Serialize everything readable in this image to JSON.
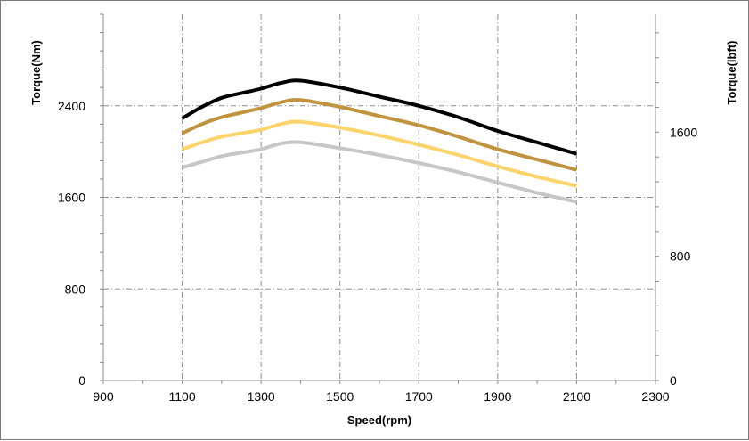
{
  "chart_data": {
    "type": "line",
    "title": "",
    "xlabel": "Speed(rpm)",
    "ylabel": "Torque(Nm)",
    "y2label": "Torque(lbft)",
    "xlim": [
      900,
      2300
    ],
    "ylim": [
      0,
      3200
    ],
    "y2lim": [
      0,
      2360
    ],
    "x_ticks": [
      "900",
      "1100",
      "1300",
      "1500",
      "1700",
      "1900",
      "2100",
      "2300"
    ],
    "y_ticks": [
      "0",
      "800",
      "1600",
      "2400"
    ],
    "y2_ticks": [
      "0",
      "800",
      "1600"
    ],
    "grid": true,
    "legend": "none",
    "series": [
      {
        "color": "#000000",
        "x": [
          1100,
          1150,
          1200,
          1250,
          1300,
          1350,
          1400,
          1500,
          1600,
          1700,
          1800,
          1900,
          2000,
          2100
        ],
        "values": [
          2290,
          2390,
          2470,
          2510,
          2550,
          2600,
          2620,
          2560,
          2480,
          2400,
          2300,
          2180,
          2080,
          1980
        ]
      },
      {
        "color": "#c1933f",
        "x": [
          1100,
          1150,
          1200,
          1250,
          1300,
          1350,
          1400,
          1500,
          1600,
          1700,
          1800,
          1900,
          2000,
          2100
        ],
        "values": [
          2160,
          2240,
          2300,
          2340,
          2380,
          2430,
          2450,
          2390,
          2310,
          2230,
          2130,
          2020,
          1930,
          1840
        ]
      },
      {
        "color": "#fdd46b",
        "x": [
          1100,
          1150,
          1200,
          1250,
          1300,
          1350,
          1400,
          1500,
          1600,
          1700,
          1800,
          1900,
          2000,
          2100
        ],
        "values": [
          2020,
          2080,
          2130,
          2160,
          2190,
          2240,
          2260,
          2210,
          2140,
          2060,
          1970,
          1870,
          1780,
          1700
        ]
      },
      {
        "color": "#c6c6c6",
        "x": [
          1100,
          1150,
          1200,
          1250,
          1300,
          1350,
          1400,
          1500,
          1600,
          1700,
          1800,
          1900,
          2000,
          2100
        ],
        "values": [
          1860,
          1910,
          1960,
          1990,
          2020,
          2070,
          2080,
          2030,
          1970,
          1900,
          1820,
          1730,
          1640,
          1560
        ]
      }
    ]
  }
}
